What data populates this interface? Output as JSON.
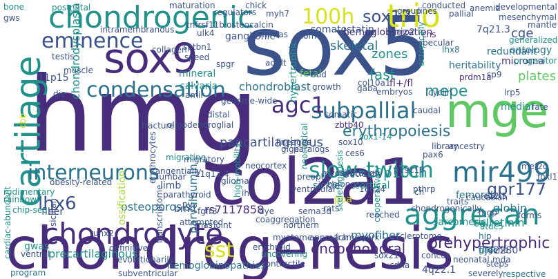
{
  "word_cloud": {
    "colors": {
      "yellow": "#d8e219",
      "lime": "#a5db36",
      "green": "#5ec962",
      "teal": "#21918c",
      "blue": "#2c728e",
      "navy": "#3b528b",
      "purple": "#472d7b",
      "dark": "#440154"
    },
    "words": [
      "sox5",
      "hmg",
      "chondrogenesis",
      "col2a1",
      "mge",
      "sox9",
      "chondrogenic",
      "trio",
      "cartilage",
      "chondrocyte",
      "aggrecan",
      "mir499",
      "slow-twitch",
      "interneurons",
      "eminence",
      "condensation",
      "subpallial",
      "agc1",
      "100h",
      "sox13",
      "lhx6",
      "sst",
      "gpr177",
      "prehypertrophic",
      "endochondral",
      "erythropoiesis",
      "hemoglobinization",
      "osteoporosis",
      "skeletal",
      "somatostatin",
      "chondroblast",
      "cge",
      "fast",
      "mepe",
      "zones",
      "7q21.3",
      "anemia",
      "p100h",
      "sox1-14",
      "flj42280",
      "pancartilaginous",
      "precartilaginous",
      "hemoglobinopathies",
      "myofiber",
      "calretinin",
      "sarcomeric",
      "ontology",
      "heritability",
      "plates",
      "microrna",
      "redundant",
      "cortical",
      "sickle",
      "fetal",
      "chondrodysplasia",
      "parvalbumin",
      "testis",
      "ganglionic",
      "lhx8",
      "ossification",
      "fiber",
      "gwas",
      "bmd",
      "rs7117858",
      "globin",
      "femoral",
      "medial",
      "poa",
      "limb",
      "11p15",
      "4q22.1",
      "hip",
      "glial",
      "mda",
      "sp9",
      "lrp5",
      "ulk4",
      "collagen",
      "intramembranous",
      "mineral",
      "calvaria",
      "spgr",
      "prdm1a",
      "cns",
      "col10a1",
      "fl+/fl",
      "transcriptome",
      "erythrocytes",
      "atdc5",
      "progenitor",
      "generalized",
      "developmental",
      "mesenchymal",
      "muscle",
      "conducted",
      "sox21",
      "framework",
      "approach",
      "northern",
      "sclerotome",
      "concur",
      "severely",
      "contractile",
      "uncovering",
      "erythroid",
      "respective",
      "program",
      "cardiac-abundant",
      "ventral",
      "sicilian",
      "rainbow",
      "chip-seq",
      "belongs",
      "myotubes",
      "myosin",
      "neocortical",
      "oligodendroglial",
      "maturation",
      "postnatal",
      "bone",
      "die",
      "gws",
      "speed",
      "adult",
      "cooperatively",
      "neonatal",
      "library",
      "ancestry",
      "fracture",
      "tangentially",
      "ih",
      "16q24",
      "mef2c",
      "paralogs",
      "fate",
      "embryos",
      "hypertrophic",
      "somatic",
      "migrating",
      "rudimentary",
      "zbtb40",
      "definitive",
      "evolutionarily",
      "subventricular",
      "glioma",
      "steps",
      "glge",
      "gene",
      "cdna",
      "amir",
      "caudal",
      "p19c16",
      "gaba",
      "myh7",
      "mirnas",
      "ectopically",
      "ces6",
      "pthrp",
      "foxl1",
      "sumo2",
      "runx2",
      "lumbar",
      "11q13.4",
      "preoptic",
      "som",
      "sema3d",
      "genome-wide",
      "sptbn1",
      "tnfrsf11b",
      "parathyroid",
      "ch",
      "cyclin",
      "fgfr3",
      "ventricular",
      "mantle",
      "traits",
      "caucasian",
      "reached",
      "e12.5",
      "mgp",
      "pallial",
      "sox10",
      "cbb",
      "obesity-related",
      "attempted",
      "rnas",
      "joint",
      "pv",
      "skeletogenesis",
      "high-mobility",
      "myotome",
      "migratory",
      "lineages",
      "efficiently",
      "chondrogenically",
      "coaggregation",
      "dye",
      "neocortex",
      "pax6",
      "rats",
      "lines",
      "forms",
      "bud",
      "growth",
      "distal",
      "group",
      "trabecular",
      "regulators",
      "osteocalcin",
      "chick",
      "crest"
    ]
  }
}
